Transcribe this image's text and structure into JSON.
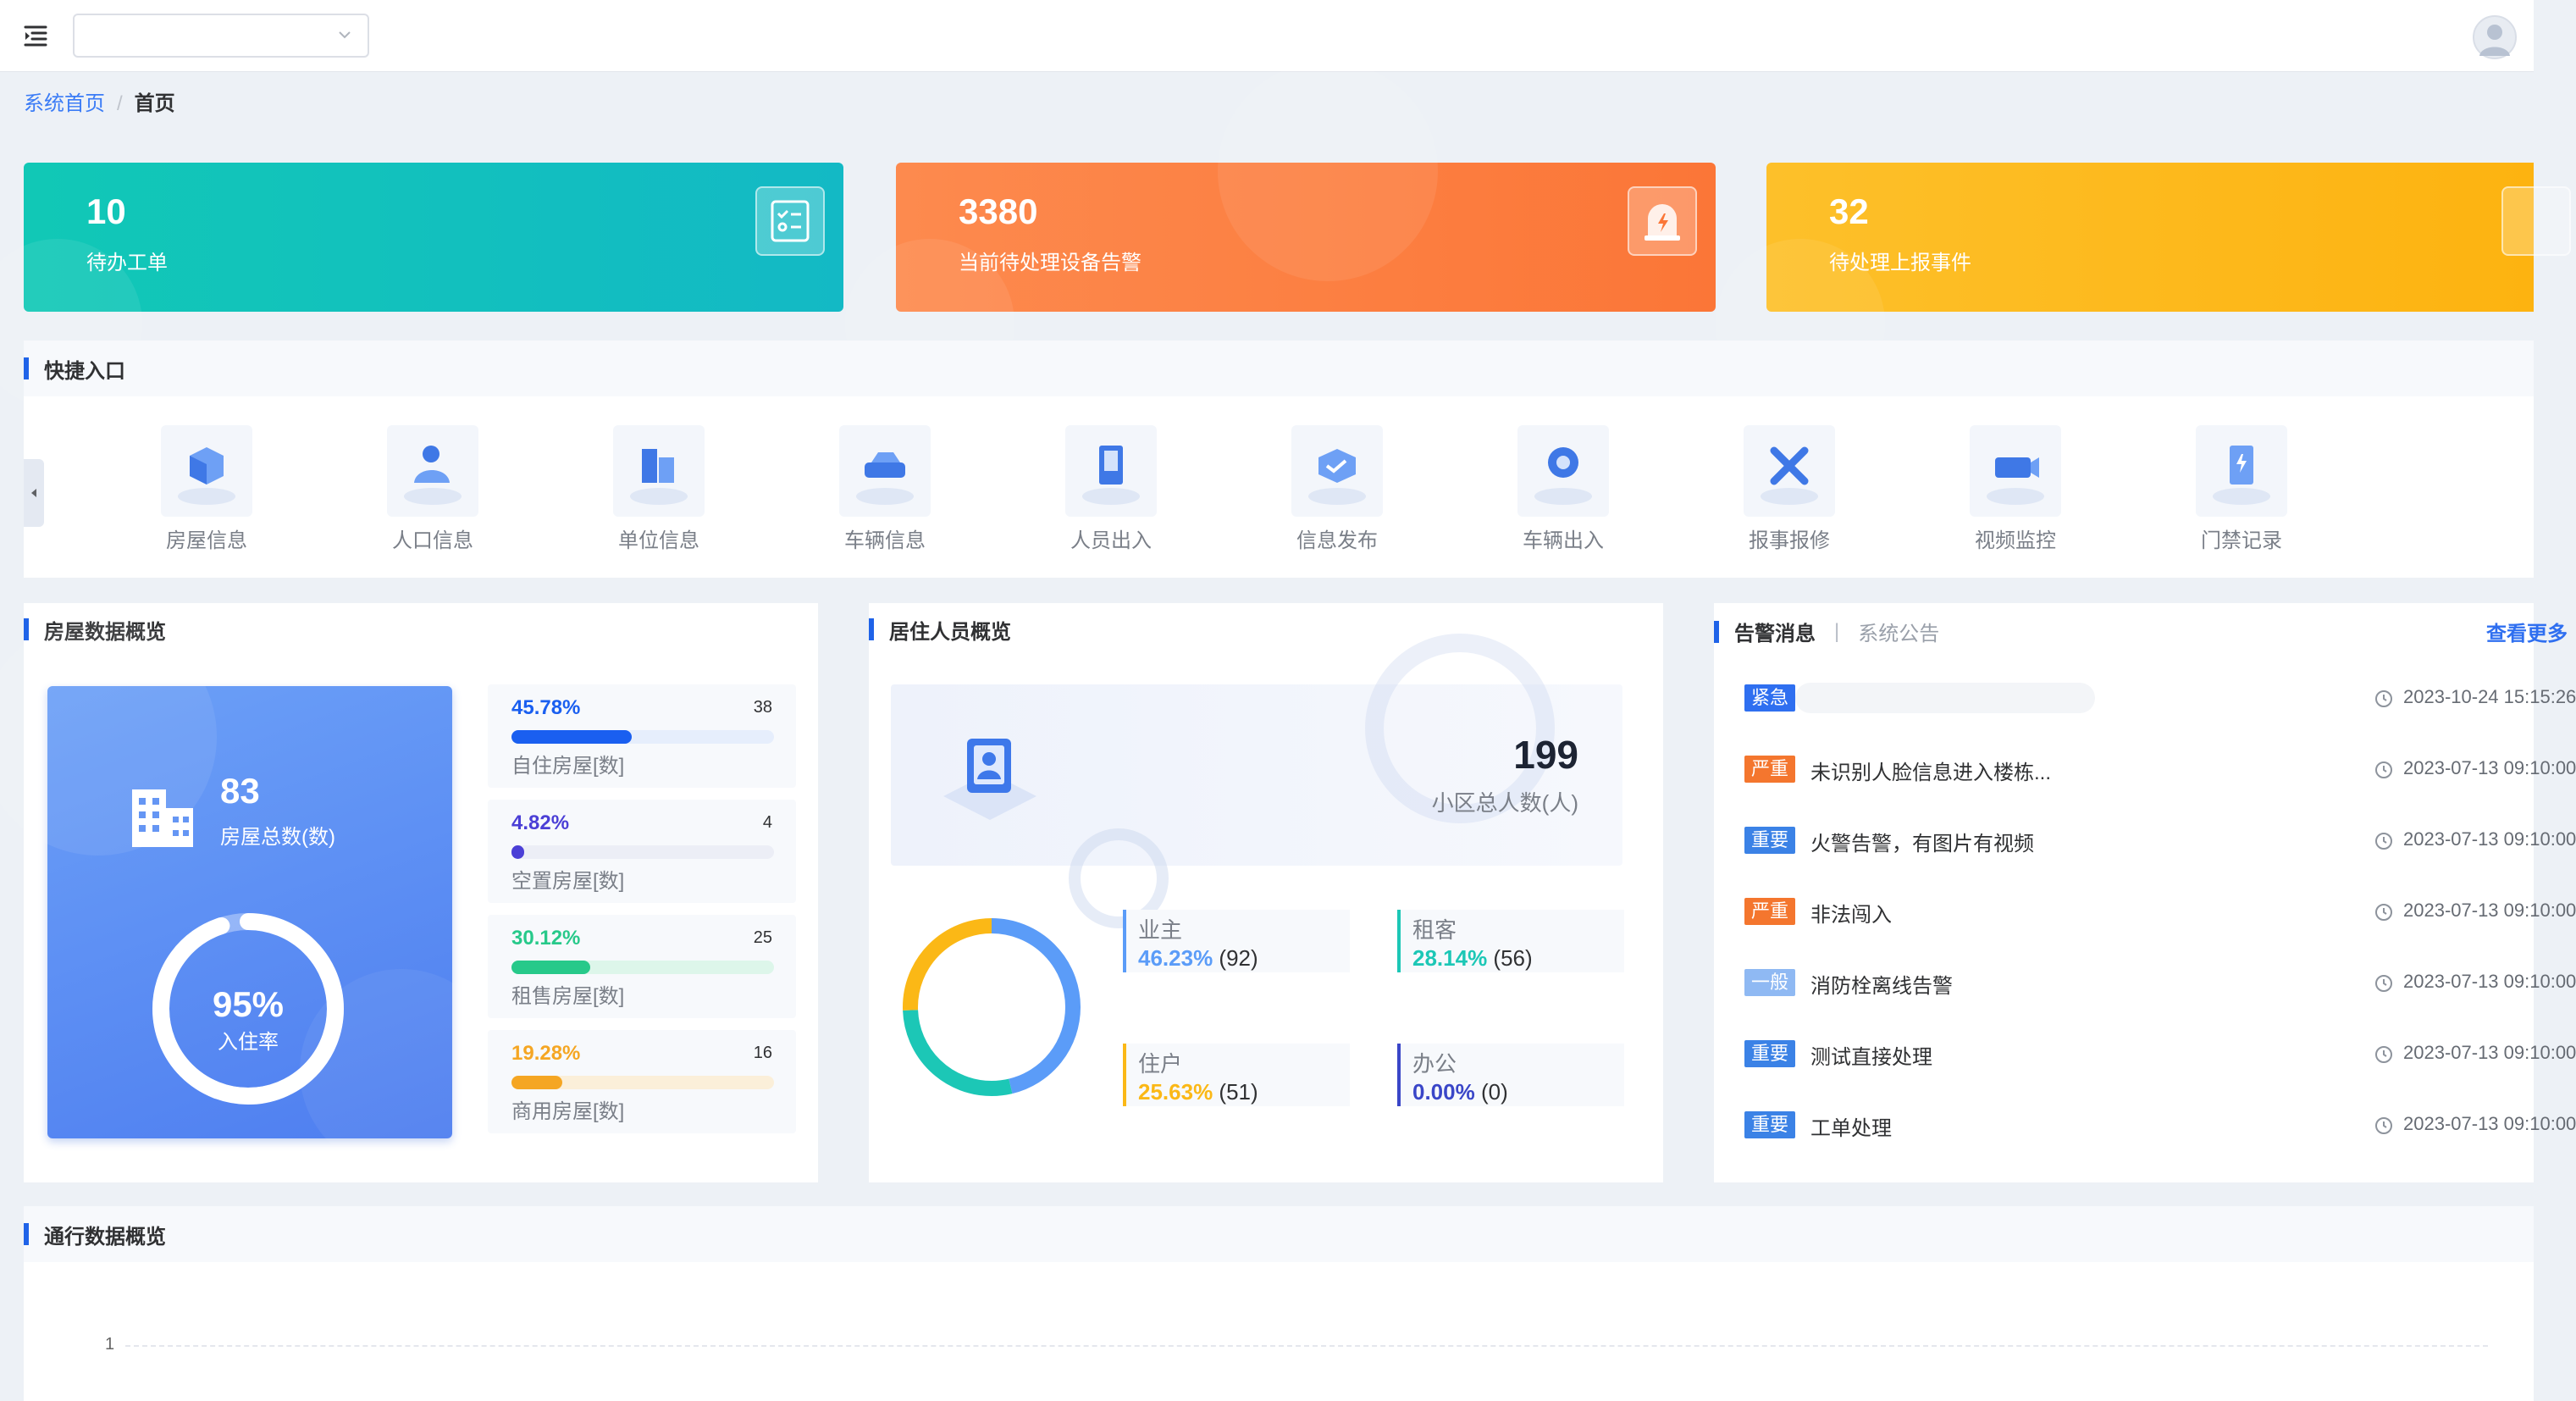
{
  "topbar": {
    "menu_icon": "menu-fold-icon",
    "select_value": "",
    "avatar_icon": "user-avatar-icon"
  },
  "breadcrumb": {
    "root": "系统首页",
    "separator": "/",
    "current": "首页"
  },
  "stats": [
    {
      "value": "10",
      "label": "待办工单",
      "icon": "checklist-icon",
      "color": "#12c9b8"
    },
    {
      "value": "3380",
      "label": "当前待处理设备告警",
      "icon": "alarm-icon",
      "color": "#fc7b3d"
    },
    {
      "value": "32",
      "label": "待处理上报事件",
      "icon": "report-icon",
      "color": "#fdb713"
    }
  ],
  "quick": {
    "title": "快捷入口",
    "items": [
      {
        "label": "房屋信息",
        "icon": "house-info-icon"
      },
      {
        "label": "人口信息",
        "icon": "population-icon"
      },
      {
        "label": "单位信息",
        "icon": "unit-info-icon"
      },
      {
        "label": "车辆信息",
        "icon": "vehicle-info-icon"
      },
      {
        "label": "人员出入",
        "icon": "person-access-icon"
      },
      {
        "label": "信息发布",
        "icon": "publish-icon"
      },
      {
        "label": "车辆出入",
        "icon": "vehicle-access-icon"
      },
      {
        "label": "报事报修",
        "icon": "repair-icon"
      },
      {
        "label": "视频监控",
        "icon": "video-monitor-icon"
      },
      {
        "label": "门禁记录",
        "icon": "door-access-icon"
      }
    ]
  },
  "house": {
    "title": "房屋数据概览",
    "total_value": "83",
    "total_label": "房屋总数(数)",
    "occupancy_pct": "95%",
    "occupancy_value": 0.95,
    "occupancy_label": "入住率",
    "rows": [
      {
        "pct": "45.78%",
        "count": "38",
        "name": "自住房屋[数]",
        "value": 0.4578,
        "color": "#1a5ff0",
        "track": "#e6eefc"
      },
      {
        "pct": "4.82%",
        "count": "4",
        "name": "空置房屋[数]",
        "value": 0.0482,
        "color": "#4b3fd6",
        "track": "#eceef6"
      },
      {
        "pct": "30.12%",
        "count": "25",
        "name": "租售房屋[数]",
        "value": 0.3012,
        "color": "#27c98a",
        "track": "#ddf6ea"
      },
      {
        "pct": "19.28%",
        "count": "16",
        "name": "商用房屋[数]",
        "value": 0.1928,
        "color": "#f5a623",
        "track": "#fbefd9"
      }
    ]
  },
  "resident": {
    "title": "居住人员概览",
    "total_value": "199",
    "total_label": "小区总人数(人)",
    "items": [
      {
        "key": "业主",
        "pct": "46.23%",
        "count": "(92)",
        "value": 92,
        "color": "#5b9cf8"
      },
      {
        "key": "租客",
        "pct": "28.14%",
        "count": "(56)",
        "value": 56,
        "color": "#1cc7b6"
      },
      {
        "key": "住户",
        "pct": "25.63%",
        "count": "(51)",
        "value": 51,
        "color": "#fbb816"
      },
      {
        "key": "办公",
        "pct": "0.00%",
        "count": "(0)",
        "value": 0,
        "color": "#3a46c8"
      }
    ]
  },
  "alarms": {
    "tab_active": "告警消息",
    "tab_sep": "|",
    "tab_other": "系统公告",
    "more": "查看更多",
    "items": [
      {
        "level": "紧急",
        "color": "#2f6ff0",
        "title": "",
        "time": "2023-10-24 15:15:26"
      },
      {
        "level": "严重",
        "color": "#f4762e",
        "title": "未识别人脸信息进入楼栋...",
        "time": "2023-07-13 09:10:00"
      },
      {
        "level": "重要",
        "color": "#3b82e6",
        "title": "火警告警，有图片有视频",
        "time": "2023-07-13 09:10:00"
      },
      {
        "level": "严重",
        "color": "#f4762e",
        "title": "非法闯入",
        "time": "2023-07-13 09:10:00"
      },
      {
        "level": "一般",
        "color": "#8fb9f3",
        "title": "消防栓离线告警",
        "time": "2023-07-13 09:10:00"
      },
      {
        "level": "重要",
        "color": "#3b82e6",
        "title": "测试直接处理",
        "time": "2023-07-13 09:10:00"
      },
      {
        "level": "重要",
        "color": "#3b82e6",
        "title": "工单处理",
        "time": "2023-07-13 09:10:00"
      }
    ]
  },
  "traffic": {
    "title": "通行数据概览",
    "y_tick": "1"
  }
}
